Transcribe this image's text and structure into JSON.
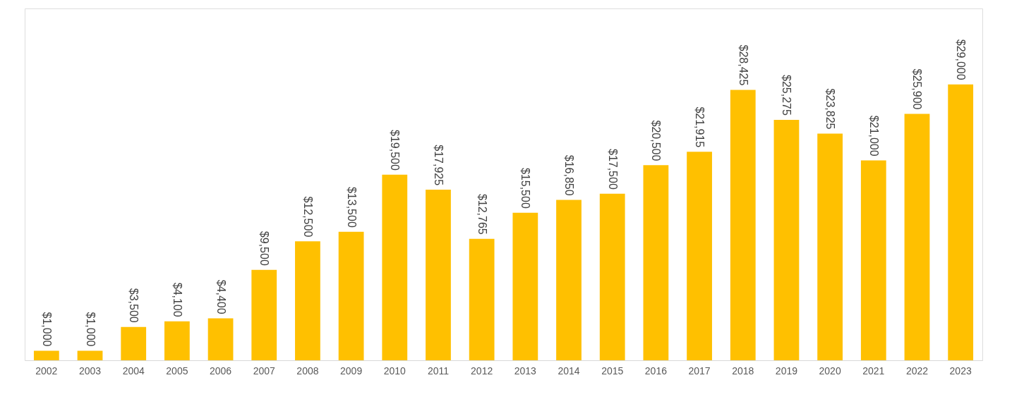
{
  "chart_data": {
    "type": "bar",
    "categories": [
      "2002",
      "2003",
      "2004",
      "2005",
      "2006",
      "2007",
      "2008",
      "2009",
      "2010",
      "2011",
      "2012",
      "2013",
      "2014",
      "2015",
      "2016",
      "2017",
      "2018",
      "2019",
      "2020",
      "2021",
      "2022",
      "2023"
    ],
    "values": [
      1000,
      1000,
      3500,
      4100,
      4400,
      9500,
      12500,
      13500,
      19500,
      17925,
      12765,
      15500,
      16850,
      17500,
      20500,
      21915,
      28425,
      25275,
      23825,
      21000,
      25900,
      29000
    ],
    "value_labels": [
      "$1,000",
      "$1,000",
      "$3,500",
      "$4,100",
      "$4,400",
      "$9,500",
      "$12,500",
      "$13,500",
      "$19,500",
      "$17,925",
      "$12,765",
      "$15,500",
      "$16,850",
      "$17,500",
      "$20,500",
      "$21,915",
      "$28,425",
      "$25,275",
      "$23,825",
      "$21,000",
      "$25,900",
      "$29,000"
    ],
    "color": "#ffc000",
    "grid": false
  }
}
